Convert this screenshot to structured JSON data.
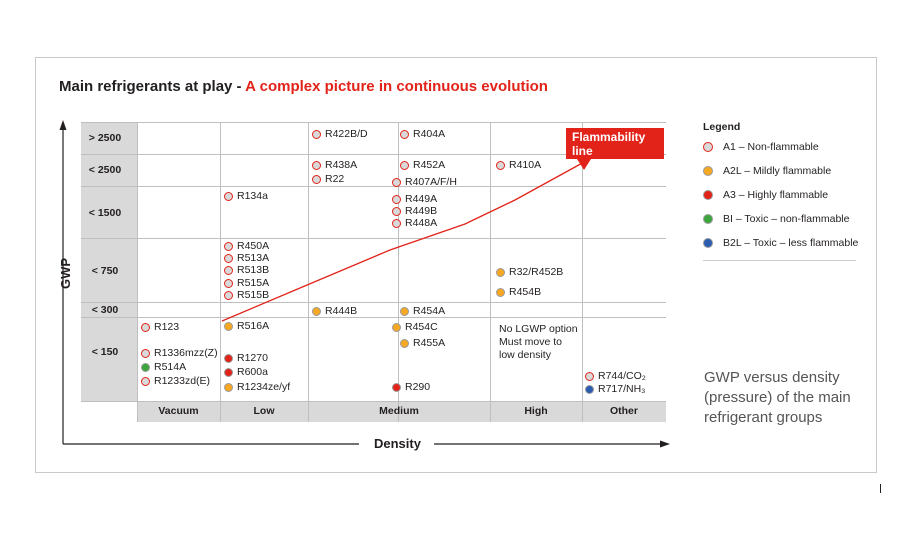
{
  "header": {
    "title_main": "Main refrigerants at play - ",
    "title_sub": "A complex picture in continuous evolution"
  },
  "axes": {
    "y_title": "GWP",
    "x_title": "Density",
    "y_ticks": [
      "> 2500",
      "< 2500",
      "< 1500",
      "< 750",
      "< 300",
      "< 150"
    ],
    "x_ticks": [
      "Vacuum",
      "Low",
      "Medium",
      "High",
      "Other"
    ]
  },
  "callout": {
    "flammability_line1": "Flammability",
    "flammability_line2": "line"
  },
  "note": {
    "line1": "No LGWP option",
    "line2": "Must move to",
    "line3": "low density"
  },
  "colors": {
    "A1": "#d9d9d9",
    "A2L": "#f7a823",
    "A3": "#e2231a",
    "BI": "#3ca63c",
    "B2L": "#2a5db0",
    "accent_red": "#e2231a"
  },
  "refrigerants": [
    {
      "label": "R422B/D",
      "class": "A1"
    },
    {
      "label": "R404A",
      "class": "A1"
    },
    {
      "label": "R438A",
      "class": "A1"
    },
    {
      "label": "R22",
      "class": "A1"
    },
    {
      "label": "R452A",
      "class": "A1"
    },
    {
      "label": "R407A/F/H",
      "class": "A1"
    },
    {
      "label": "R410A",
      "class": "A1"
    },
    {
      "label": "R134a",
      "class": "A1"
    },
    {
      "label": "R449A",
      "class": "A1"
    },
    {
      "label": "R449B",
      "class": "A1"
    },
    {
      "label": "R448A",
      "class": "A1"
    },
    {
      "label": "R450A",
      "class": "A1"
    },
    {
      "label": "R513A",
      "class": "A1"
    },
    {
      "label": "R513B",
      "class": "A1"
    },
    {
      "label": "R515A",
      "class": "A1"
    },
    {
      "label": "R515B",
      "class": "A1"
    },
    {
      "label": "R32/R452B",
      "class": "A2L"
    },
    {
      "label": "R454B",
      "class": "A2L"
    },
    {
      "label": "R444B",
      "class": "A2L"
    },
    {
      "label": "R454A",
      "class": "A2L"
    },
    {
      "label": "R123",
      "class": "A1"
    },
    {
      "label": "R516A",
      "class": "A2L"
    },
    {
      "label": "R454C",
      "class": "A2L"
    },
    {
      "label": "R455A",
      "class": "A2L"
    },
    {
      "label": "R1336mzz(Z)",
      "class": "A1"
    },
    {
      "label": "R514A",
      "class": "BI"
    },
    {
      "label": "R1233zd(E)",
      "class": "A1"
    },
    {
      "label": "R1270",
      "class": "A3"
    },
    {
      "label": "R600a",
      "class": "A3"
    },
    {
      "label": "R1234ze/yf",
      "class": "A2L"
    },
    {
      "label": "R290",
      "class": "A3"
    },
    {
      "label": "R744/CO₂",
      "class": "A1"
    },
    {
      "label": "R717/NH₃",
      "class": "B2L"
    }
  ],
  "legend": {
    "title": "Legend",
    "items": [
      {
        "label": "A1 – Non-flammable",
        "class": "A1"
      },
      {
        "label": "A2L –  Mildly flammable",
        "class": "A2L"
      },
      {
        "label": "A3 –  Highly flammable",
        "class": "A3"
      },
      {
        "label": "BI – Toxic – non-flammable",
        "class": "BI"
      },
      {
        "label": "B2L – Toxic – less flammable",
        "class": "B2L"
      }
    ]
  },
  "caption": "GWP versus density (pressure) of the main refrigerant groups"
}
